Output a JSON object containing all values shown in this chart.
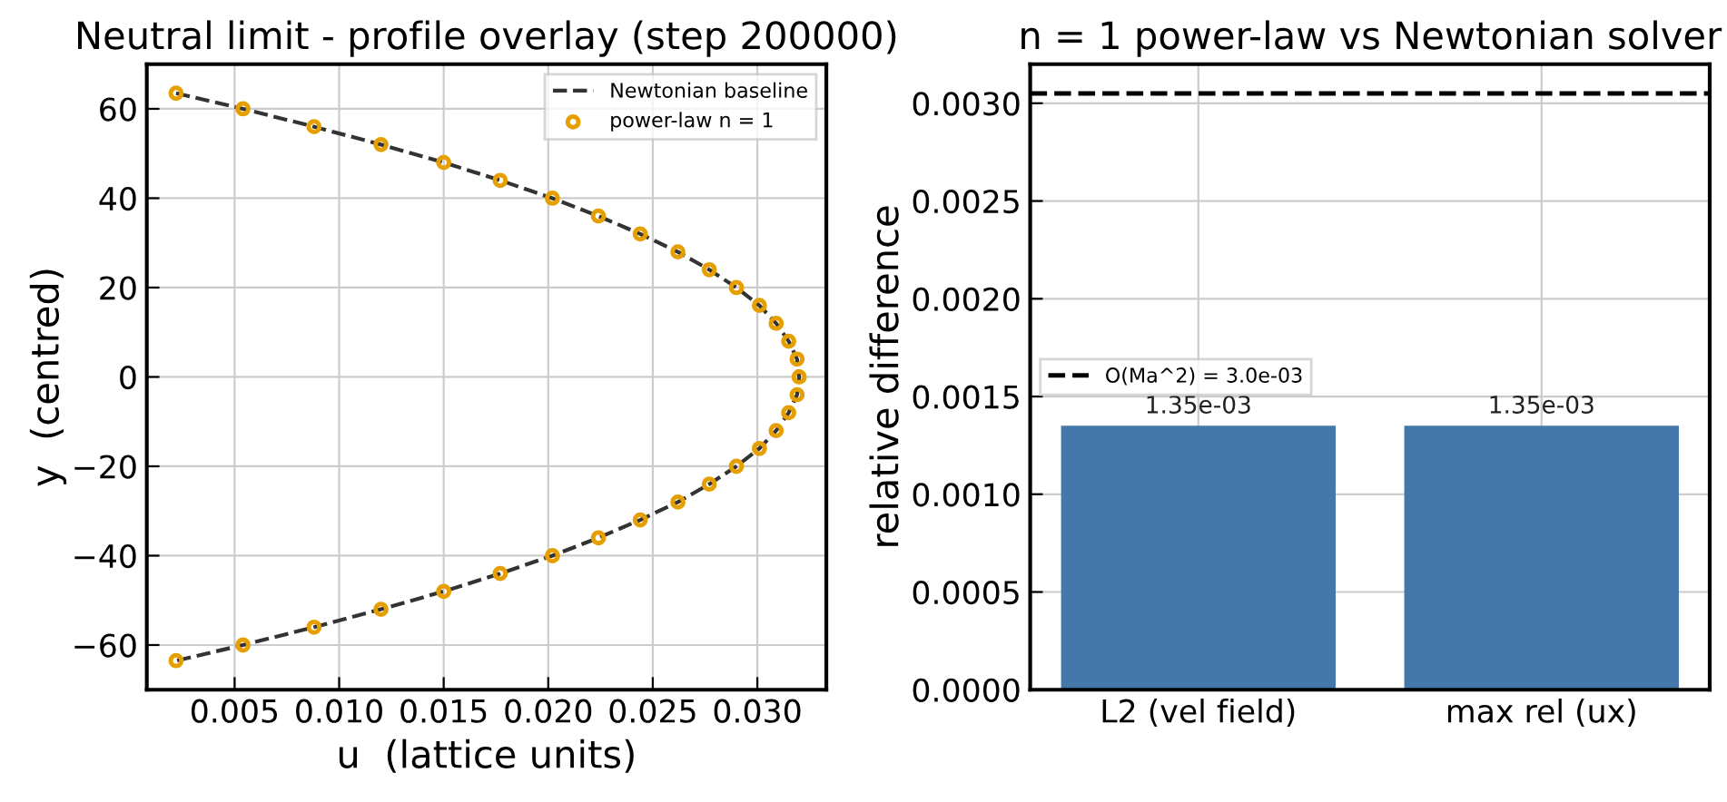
{
  "chart_data": [
    {
      "type": "scatter",
      "title": "Neutral limit - profile overlay (step 200000)",
      "xlabel": "u  (lattice units)",
      "ylabel": "y  (centred)",
      "xlim": [
        0.0008,
        0.0333
      ],
      "xticks": [
        {
          "value": 0.005,
          "label": "0.005"
        },
        {
          "value": 0.01,
          "label": "0.010"
        },
        {
          "value": 0.015,
          "label": "0.015"
        },
        {
          "value": 0.02,
          "label": "0.020"
        },
        {
          "value": 0.025,
          "label": "0.025"
        },
        {
          "value": 0.03,
          "label": "0.030"
        }
      ],
      "ylim": [
        -70,
        70
      ],
      "yticks": [
        {
          "value": -60,
          "label": "−60"
        },
        {
          "value": -40,
          "label": "−40"
        },
        {
          "value": -20,
          "label": "−20"
        },
        0,
        20,
        40,
        60
      ],
      "grid": true,
      "legend": "top right",
      "series": [
        {
          "name": "Newtonian baseline",
          "type": "line",
          "color": "#333333",
          "line_style": "dashed",
          "marker": "none",
          "x": [
            0.0022,
            0.0054,
            0.0088,
            0.012,
            0.015,
            0.0177,
            0.0202,
            0.0224,
            0.0244,
            0.0262,
            0.0277,
            0.029,
            0.0301,
            0.0309,
            0.0315,
            0.0319,
            0.032,
            0.0319,
            0.0315,
            0.0309,
            0.0301,
            0.029,
            0.0277,
            0.0262,
            0.0244,
            0.0224,
            0.0202,
            0.0177,
            0.015,
            0.012,
            0.0088,
            0.0054,
            0.0022
          ],
          "values": [
            63.5,
            60,
            56,
            52,
            48,
            44,
            40,
            36,
            32,
            28,
            24,
            20,
            16,
            12,
            8,
            4,
            0,
            -4,
            -8,
            -12,
            -16,
            -20,
            -24,
            -28,
            -32,
            -36,
            -40,
            -44,
            -48,
            -52,
            -56,
            -60,
            -63.5
          ]
        },
        {
          "name": "power-law n = 1",
          "type": "scatter",
          "color": "#e69f00",
          "marker": "circle",
          "x": [
            0.0022,
            0.0054,
            0.0088,
            0.012,
            0.015,
            0.0177,
            0.0202,
            0.0224,
            0.0244,
            0.0262,
            0.0277,
            0.029,
            0.0301,
            0.0309,
            0.0315,
            0.0319,
            0.032,
            0.0319,
            0.0315,
            0.0309,
            0.0301,
            0.029,
            0.0277,
            0.0262,
            0.0244,
            0.0224,
            0.0202,
            0.0177,
            0.015,
            0.012,
            0.0088,
            0.0054,
            0.0022
          ],
          "values": [
            63.5,
            60,
            56,
            52,
            48,
            44,
            40,
            36,
            32,
            28,
            24,
            20,
            16,
            12,
            8,
            4,
            0,
            -4,
            -8,
            -12,
            -16,
            -20,
            -24,
            -28,
            -32,
            -36,
            -40,
            -44,
            -48,
            -52,
            -56,
            -60,
            -63.5
          ]
        }
      ]
    },
    {
      "type": "bar",
      "title": "n = 1 power-law vs Newtonian solver",
      "ylabel": "relative difference",
      "categories": [
        "L2 (vel field)",
        "max rel (ux)"
      ],
      "values": [
        0.00135,
        0.00135
      ],
      "color": "#4477aa",
      "value_labels": [
        "1.35e-03",
        "1.35e-03"
      ],
      "ylim": [
        0,
        0.0032
      ],
      "yticks": [
        {
          "value": 0,
          "label": "0.0000"
        },
        {
          "value": 0.0005,
          "label": "0.0005"
        },
        {
          "value": 0.001,
          "label": "0.0010"
        },
        {
          "value": 0.0015,
          "label": "0.0015"
        },
        {
          "value": 0.002,
          "label": "0.0020"
        },
        {
          "value": 0.0025,
          "label": "0.0025"
        },
        {
          "value": 0.003,
          "label": "0.0030"
        }
      ],
      "ref_lines": [
        {
          "axis": "y",
          "value": 0.00305,
          "label": "O(Ma^2) = 3.0e-03",
          "color": "#000000",
          "line_style": "dashed"
        }
      ],
      "grid": true,
      "legend": "left"
    }
  ]
}
